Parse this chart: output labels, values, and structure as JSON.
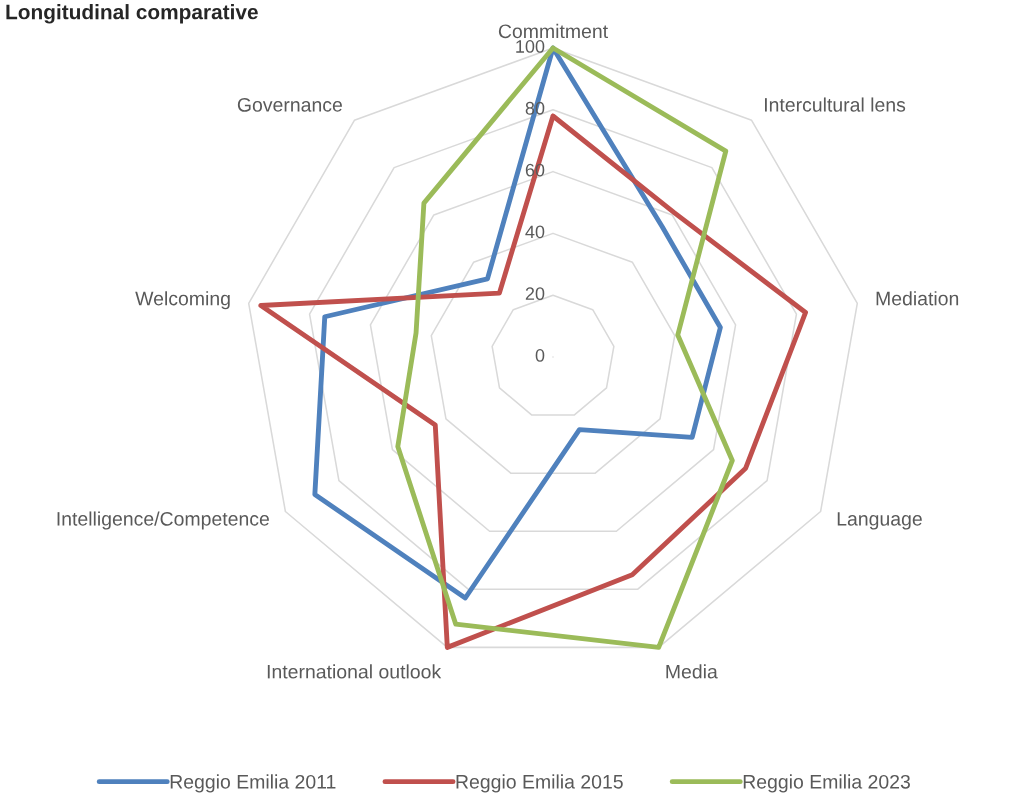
{
  "chart_data": {
    "type": "radar",
    "title": "Longitudinal comparative",
    "categories": [
      "Commitment",
      "Intercultural lens",
      "Mediation",
      "Language",
      "Media",
      "International outlook",
      "Intelligence/Competence",
      "Welcoming",
      "Governance"
    ],
    "ylim": [
      0,
      100
    ],
    "yticks": [
      0,
      20,
      40,
      60,
      80,
      100
    ],
    "grid": true,
    "legend": "bottom",
    "series": [
      {
        "name": "Reggio Emilia 2011",
        "color": "#4f81bd",
        "values": [
          100,
          55,
          55,
          52,
          25,
          83,
          89,
          75,
          33
        ]
      },
      {
        "name": "Reggio Emilia 2015",
        "color": "#c0504d",
        "values": [
          78,
          61,
          83,
          72,
          75,
          100,
          44,
          96,
          27
        ]
      },
      {
        "name": "Reggio Emilia 2023",
        "color": "#9bbb59",
        "values": [
          100,
          87,
          41,
          67,
          100,
          92,
          58,
          45,
          65
        ]
      }
    ]
  }
}
